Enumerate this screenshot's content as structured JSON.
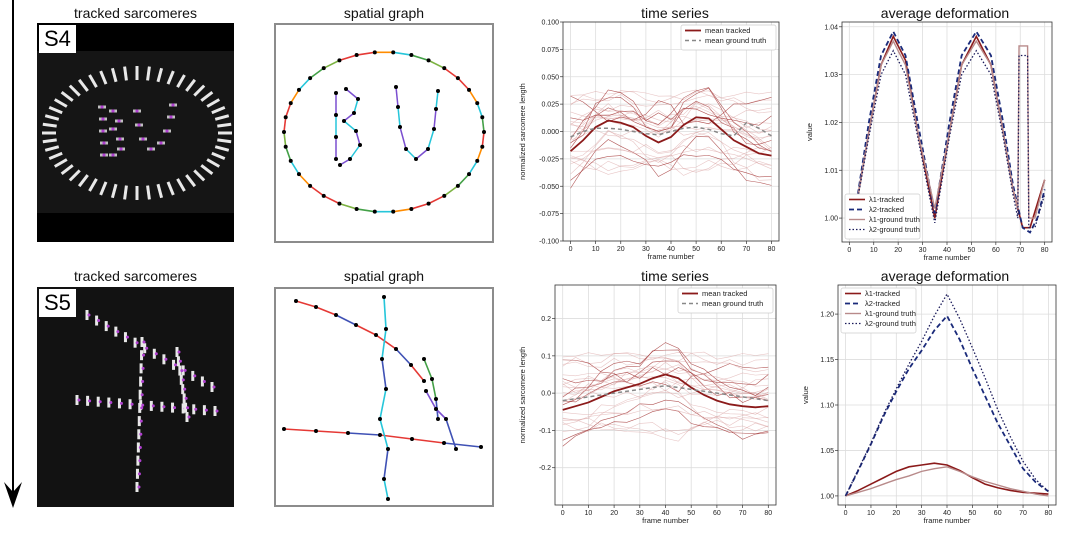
{
  "colors": {
    "tracked": "#8b1a1a",
    "ground": "#888888",
    "l1t": "#8b1a1a",
    "l2t": "#1a2a7a",
    "l1g": "#b88a8a",
    "l2g": "#1a1a5a",
    "bead_white": "#e8e8e8",
    "bead_purple": "#b040d0"
  },
  "rows": [
    {
      "sample": "S4",
      "titles": {
        "image": "tracked sarcomeres",
        "graph": "spatial graph",
        "ts": "time series",
        "def": "average deformation"
      },
      "chart_data": [
        {
          "type": "line",
          "title": "time series",
          "xlabel": "frame number",
          "ylabel": "normalized sarcomere length",
          "xlim": [
            -3,
            83
          ],
          "ylim": [
            -0.1,
            0.1
          ],
          "xticks": [
            0,
            10,
            20,
            30,
            40,
            50,
            60,
            70,
            80
          ],
          "yticks": [
            -0.1,
            -0.075,
            -0.05,
            -0.025,
            0.0,
            0.025,
            0.05,
            0.075,
            0.1
          ],
          "ytick_labels": [
            "-0.100",
            "-0.075",
            "-0.050",
            "-0.025",
            "0.000",
            "0.025",
            "0.050",
            "0.075",
            "0.100"
          ],
          "legend_position": "top-right",
          "series": [
            {
              "name": "mean tracked",
              "style": "solid",
              "x": [
                0,
                5,
                10,
                15,
                20,
                25,
                30,
                35,
                40,
                45,
                50,
                55,
                60,
                65,
                70,
                75,
                80
              ],
              "values": [
                -0.018,
                -0.008,
                0.004,
                0.01,
                0.008,
                0.004,
                -0.004,
                -0.01,
                -0.005,
                0.006,
                0.013,
                0.012,
                0.002,
                -0.008,
                -0.014,
                -0.02,
                -0.022
              ]
            },
            {
              "name": "mean ground truth",
              "style": "dashed",
              "x": [
                0,
                5,
                10,
                15,
                20,
                25,
                30,
                35,
                40,
                45,
                50,
                55,
                60,
                65,
                70,
                75,
                80
              ],
              "values": [
                -0.005,
                0.0,
                0.003,
                0.003,
                0.002,
                0.0,
                -0.002,
                -0.003,
                0.0,
                0.003,
                0.004,
                0.002,
                -0.002,
                -0.004,
                0.008,
                0.003,
                -0.004
              ]
            }
          ]
        },
        {
          "type": "line",
          "title": "average deformation",
          "xlabel": "frame number",
          "ylabel": "value",
          "xlim": [
            -3,
            83
          ],
          "ylim": [
            0.995,
            1.041
          ],
          "xticks": [
            0,
            10,
            20,
            30,
            40,
            50,
            60,
            70,
            80
          ],
          "yticks": [
            1.0,
            1.01,
            1.02,
            1.03,
            1.04
          ],
          "ytick_labels": [
            "1.00",
            "1.01",
            "1.02",
            "1.03",
            "1.04"
          ],
          "legend_position": "bottom-left",
          "series": [
            {
              "name": "λ1-tracked",
              "style": "solid",
              "x": [
                2,
                8,
                13,
                18,
                23,
                28,
                35,
                41,
                46,
                52,
                58,
                63,
                67,
                71,
                74,
                77,
                80
              ],
              "values": [
                1.0,
                1.018,
                1.032,
                1.038,
                1.033,
                1.018,
                1.0,
                1.018,
                1.032,
                1.038,
                1.032,
                1.018,
                1.006,
                0.998,
                0.998,
                1.003,
                1.008
              ]
            },
            {
              "name": "λ2-tracked",
              "style": "dashed",
              "x": [
                2,
                8,
                13,
                18,
                23,
                28,
                35,
                41,
                46,
                52,
                58,
                63,
                67,
                71,
                74,
                77,
                80
              ],
              "values": [
                1.0,
                1.02,
                1.034,
                1.039,
                1.034,
                1.02,
                1.001,
                1.02,
                1.034,
                1.039,
                1.034,
                1.02,
                1.007,
                0.998,
                0.997,
                1.0,
                1.006
              ]
            },
            {
              "name": "λ1-ground truth",
              "style": "solid",
              "x": [
                2,
                8,
                13,
                18,
                23,
                28,
                35,
                41,
                46,
                52,
                58,
                63,
                67,
                69,
                69.5,
                73,
                73.5,
                76,
                80
              ],
              "values": [
                1.0,
                1.018,
                1.032,
                1.037,
                1.032,
                1.018,
                1.002,
                1.018,
                1.032,
                1.037,
                1.032,
                1.018,
                1.006,
                1.002,
                1.036,
                1.036,
                1.0,
                1.0,
                1.008
              ]
            },
            {
              "name": "λ2-ground truth",
              "style": "dotted",
              "x": [
                2,
                8,
                13,
                18,
                23,
                28,
                35,
                41,
                46,
                52,
                58,
                63,
                67,
                69,
                69.5,
                73,
                73.5,
                76,
                80
              ],
              "values": [
                1.0,
                1.017,
                1.03,
                1.035,
                1.03,
                1.017,
                0.999,
                1.017,
                1.03,
                1.035,
                1.03,
                1.017,
                1.005,
                1.0,
                1.034,
                1.034,
                0.998,
                0.998,
                1.005
              ]
            }
          ]
        }
      ]
    },
    {
      "sample": "S5",
      "titles": {
        "image": "tracked sarcomeres",
        "graph": "spatial graph",
        "ts": "time series",
        "def": "average deformation"
      },
      "chart_data": [
        {
          "type": "line",
          "title": "time series",
          "xlabel": "frame number",
          "ylabel": "normalized sarcomere length",
          "xlim": [
            -3,
            83
          ],
          "ylim": [
            -0.3,
            0.29
          ],
          "xticks": [
            0,
            10,
            20,
            30,
            40,
            50,
            60,
            70,
            80
          ],
          "yticks": [
            -0.2,
            -0.1,
            0.0,
            0.1,
            0.2
          ],
          "ytick_labels": [
            "-0.2",
            "-0.1",
            "0.0",
            "0.1",
            "0.2"
          ],
          "legend_position": "top-right",
          "series": [
            {
              "name": "mean tracked",
              "style": "solid",
              "x": [
                0,
                5,
                10,
                15,
                20,
                25,
                30,
                35,
                40,
                45,
                50,
                55,
                60,
                65,
                70,
                75,
                80
              ],
              "values": [
                -0.045,
                -0.035,
                -0.025,
                -0.01,
                0.005,
                0.015,
                0.025,
                0.04,
                0.05,
                0.04,
                0.015,
                -0.005,
                -0.02,
                -0.03,
                -0.035,
                -0.038,
                -0.035
              ]
            },
            {
              "name": "mean ground truth",
              "style": "dashed",
              "x": [
                0,
                5,
                10,
                15,
                20,
                25,
                30,
                35,
                40,
                45,
                50,
                55,
                60,
                65,
                70,
                75,
                80
              ],
              "values": [
                -0.02,
                -0.015,
                -0.01,
                -0.005,
                0.0,
                0.005,
                0.01,
                0.015,
                0.02,
                0.015,
                0.01,
                0.005,
                0.0,
                -0.005,
                -0.01,
                -0.015,
                -0.02
              ]
            }
          ]
        },
        {
          "type": "line",
          "title": "average deformation",
          "xlabel": "frame number",
          "ylabel": "value",
          "xlim": [
            -3,
            83
          ],
          "ylim": [
            0.99,
            1.232
          ],
          "xticks": [
            0,
            10,
            20,
            30,
            40,
            50,
            60,
            70,
            80
          ],
          "yticks": [
            1.0,
            1.05,
            1.1,
            1.15,
            1.2
          ],
          "ytick_labels": [
            "1.00",
            "1.05",
            "1.10",
            "1.15",
            "1.20"
          ],
          "legend_position": "top-left",
          "series": [
            {
              "name": "λ1-tracked",
              "style": "solid",
              "x": [
                0,
                5,
                10,
                15,
                20,
                25,
                30,
                35,
                40,
                45,
                50,
                55,
                60,
                65,
                70,
                75,
                80
              ],
              "values": [
                1.0,
                1.006,
                1.013,
                1.02,
                1.027,
                1.032,
                1.034,
                1.036,
                1.034,
                1.028,
                1.02,
                1.013,
                1.009,
                1.006,
                1.004,
                1.003,
                1.002
              ]
            },
            {
              "name": "λ2-tracked",
              "style": "dashed",
              "x": [
                0,
                5,
                10,
                15,
                20,
                25,
                30,
                35,
                40,
                45,
                50,
                55,
                60,
                65,
                70,
                75,
                80
              ],
              "values": [
                1.0,
                1.028,
                1.057,
                1.088,
                1.115,
                1.14,
                1.16,
                1.182,
                1.198,
                1.172,
                1.14,
                1.11,
                1.08,
                1.055,
                1.03,
                1.015,
                1.005
              ]
            },
            {
              "name": "λ1-ground truth",
              "style": "solid",
              "x": [
                0,
                5,
                10,
                15,
                20,
                25,
                30,
                35,
                40,
                45,
                50,
                55,
                60,
                65,
                70,
                75,
                80
              ],
              "values": [
                1.0,
                1.004,
                1.008,
                1.013,
                1.018,
                1.022,
                1.027,
                1.03,
                1.032,
                1.027,
                1.021,
                1.016,
                1.012,
                1.008,
                1.005,
                1.002,
                1.0
              ]
            },
            {
              "name": "λ2-ground truth",
              "style": "dotted",
              "x": [
                0,
                5,
                10,
                15,
                20,
                25,
                30,
                35,
                40,
                45,
                50,
                55,
                60,
                65,
                70,
                75,
                80
              ],
              "values": [
                1.0,
                1.029,
                1.058,
                1.09,
                1.118,
                1.145,
                1.17,
                1.198,
                1.222,
                1.195,
                1.163,
                1.13,
                1.095,
                1.065,
                1.038,
                1.018,
                1.005
              ]
            }
          ]
        }
      ]
    }
  ]
}
